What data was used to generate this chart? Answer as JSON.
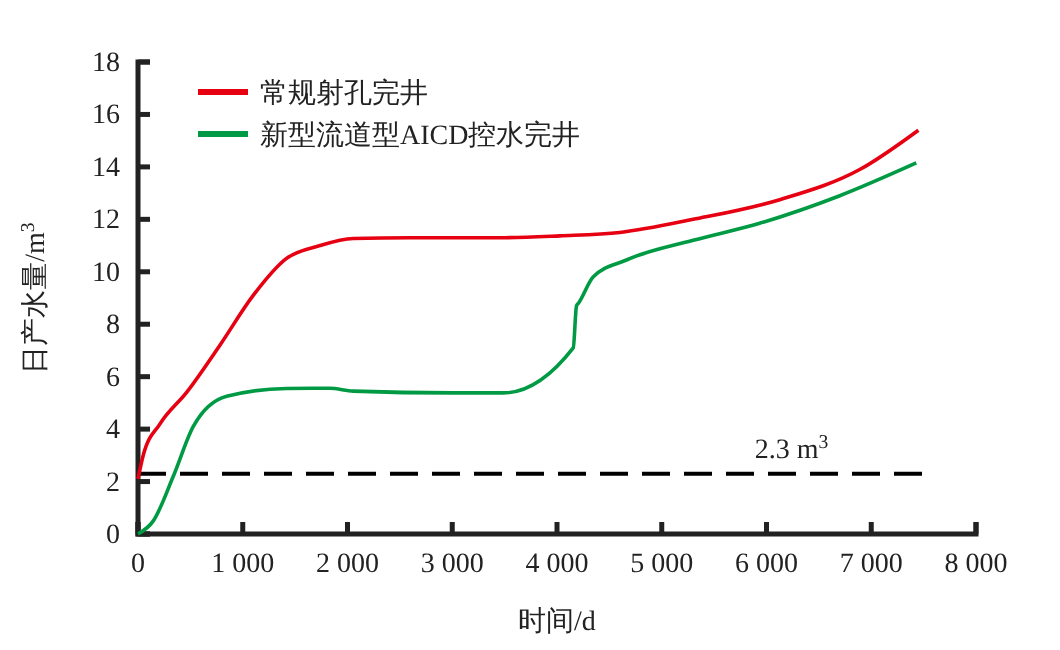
{
  "chart_data": {
    "type": "line",
    "xlabel": "时间/d",
    "ylabel": "日产水量/m$^{3}$",
    "xlim": [
      0,
      8000
    ],
    "ylim": [
      0,
      18
    ],
    "xticks": [
      0,
      {
        "value": 1000,
        "label": "1 000"
      },
      {
        "value": 2000,
        "label": "2 000"
      },
      {
        "value": 3000,
        "label": "3 000"
      },
      {
        "value": 4000,
        "label": "4 000"
      },
      {
        "value": 5000,
        "label": "5 000"
      },
      {
        "value": 6000,
        "label": "6 000"
      },
      {
        "value": 7000,
        "label": "7 000"
      },
      {
        "value": 8000,
        "label": "8 000"
      }
    ],
    "yticks": [
      0,
      2,
      4,
      6,
      8,
      10,
      12,
      14,
      16,
      18
    ],
    "grid": false,
    "legend": "top left",
    "marker": "none",
    "line_style": "solid",
    "ref_lines": [
      {
        "axis": "y",
        "value": 2.3,
        "label": "2.3 m$^{3}$",
        "color": "#000000",
        "line_style": "dashed"
      }
    ],
    "series": [
      {
        "name": "常规射孔完井",
        "color": "#e60012",
        "x": [
          0,
          50,
          210,
          464,
          782,
          1100,
          1415,
          1737,
          2055,
          2600,
          3100,
          3500,
          4027,
          4600,
          5300,
          6126,
          6890,
          7450
        ],
        "values": [
          2.1,
          3.0,
          4.2,
          5.4,
          7.2,
          9.1,
          10.5,
          11.0,
          11.27,
          11.3,
          11.3,
          11.3,
          11.37,
          11.5,
          12.0,
          12.75,
          13.9,
          15.4
        ]
      },
      {
        "name": "新型流道型AICD控水完井",
        "color": "#009a44",
        "x": [
          0,
          146,
          337,
          528,
          846,
          1418,
          1830,
          2055,
          3009,
          3486,
          4155,
          4186,
          4205,
          4345,
          4663,
          5300,
          5935,
          6700,
          7430
        ],
        "values": [
          0,
          0.5,
          2.2,
          4.1,
          5.25,
          5.55,
          5.56,
          5.45,
          5.38,
          5.38,
          7.1,
          8.7,
          8.8,
          9.8,
          10.45,
          11.2,
          11.85,
          12.9,
          14.15
        ]
      }
    ]
  }
}
